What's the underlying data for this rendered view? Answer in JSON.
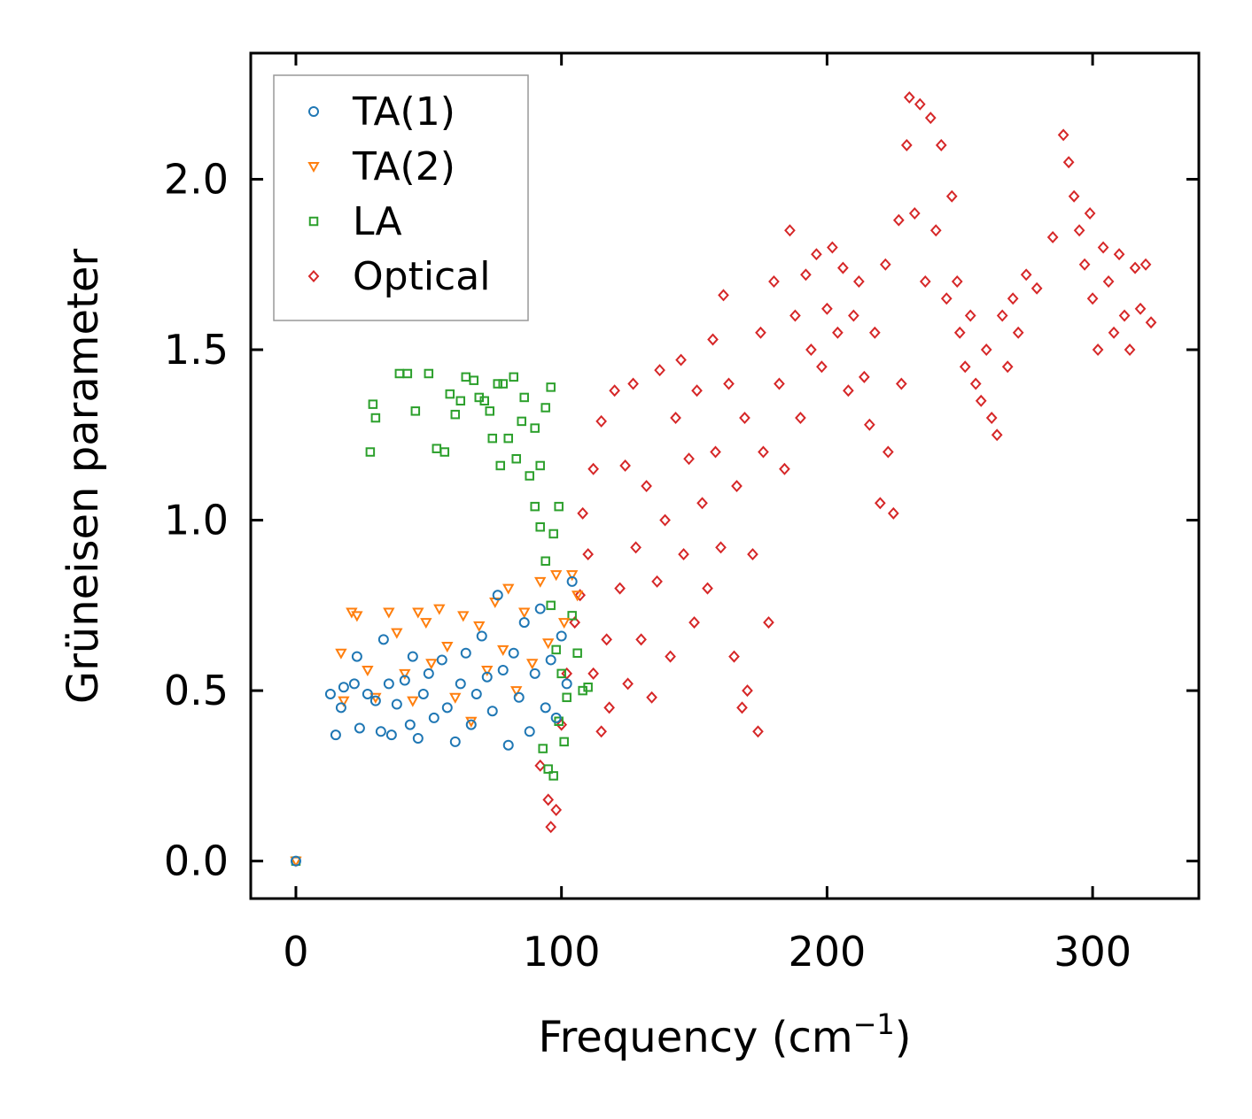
{
  "chart_data": {
    "type": "scatter",
    "title": "",
    "xlabel": "Frequency (cm",
    "xlabel_sup": "−1",
    "xlabel_close": ")",
    "ylabel": "Grüneisen parameter",
    "xlim": [
      -17,
      340
    ],
    "ylim": [
      -0.11,
      2.37
    ],
    "xticks": [
      0,
      100,
      200,
      300
    ],
    "xtick_labels": [
      "0",
      "100",
      "200",
      "300"
    ],
    "yticks": [
      0.0,
      0.5,
      1.0,
      1.5,
      2.0
    ],
    "ytick_labels": [
      "0.0",
      "0.5",
      "1.0",
      "1.5",
      "2.0"
    ],
    "grid": false,
    "legend_position": "top-left",
    "series": [
      {
        "name": "TA(1)",
        "color": "#1f77b4",
        "marker": "circle",
        "points": [
          [
            0,
            0
          ],
          [
            13,
            0.49
          ],
          [
            15,
            0.37
          ],
          [
            17,
            0.45
          ],
          [
            18,
            0.51
          ],
          [
            22,
            0.52
          ],
          [
            23,
            0.6
          ],
          [
            24,
            0.39
          ],
          [
            27,
            0.49
          ],
          [
            30,
            0.47
          ],
          [
            32,
            0.38
          ],
          [
            33,
            0.65
          ],
          [
            35,
            0.52
          ],
          [
            36,
            0.37
          ],
          [
            38,
            0.46
          ],
          [
            41,
            0.53
          ],
          [
            43,
            0.4
          ],
          [
            44,
            0.6
          ],
          [
            46,
            0.36
          ],
          [
            48,
            0.49
          ],
          [
            50,
            0.55
          ],
          [
            52,
            0.42
          ],
          [
            55,
            0.59
          ],
          [
            57,
            0.45
          ],
          [
            60,
            0.35
          ],
          [
            62,
            0.52
          ],
          [
            64,
            0.61
          ],
          [
            66,
            0.4
          ],
          [
            68,
            0.49
          ],
          [
            70,
            0.66
          ],
          [
            72,
            0.54
          ],
          [
            74,
            0.44
          ],
          [
            76,
            0.78
          ],
          [
            78,
            0.56
          ],
          [
            80,
            0.34
          ],
          [
            82,
            0.61
          ],
          [
            84,
            0.48
          ],
          [
            86,
            0.7
          ],
          [
            88,
            0.38
          ],
          [
            90,
            0.55
          ],
          [
            92,
            0.74
          ],
          [
            94,
            0.45
          ],
          [
            96,
            0.59
          ],
          [
            98,
            0.42
          ],
          [
            100,
            0.66
          ],
          [
            102,
            0.52
          ],
          [
            104,
            0.82
          ]
        ]
      },
      {
        "name": "TA(2)",
        "color": "#ff7f0e",
        "marker": "triangle-down",
        "points": [
          [
            0,
            0
          ],
          [
            17,
            0.61
          ],
          [
            18,
            0.47
          ],
          [
            21,
            0.73
          ],
          [
            23,
            0.72
          ],
          [
            27,
            0.56
          ],
          [
            30,
            0.48
          ],
          [
            35,
            0.73
          ],
          [
            38,
            0.67
          ],
          [
            41,
            0.55
          ],
          [
            44,
            0.47
          ],
          [
            46,
            0.73
          ],
          [
            49,
            0.7
          ],
          [
            51,
            0.58
          ],
          [
            54,
            0.74
          ],
          [
            57,
            0.63
          ],
          [
            60,
            0.48
          ],
          [
            63,
            0.72
          ],
          [
            66,
            0.41
          ],
          [
            69,
            0.69
          ],
          [
            72,
            0.56
          ],
          [
            75,
            0.76
          ],
          [
            78,
            0.62
          ],
          [
            80,
            0.8
          ],
          [
            83,
            0.5
          ],
          [
            86,
            0.73
          ],
          [
            89,
            0.58
          ],
          [
            92,
            0.82
          ],
          [
            95,
            0.64
          ],
          [
            98,
            0.84
          ],
          [
            101,
            0.7
          ],
          [
            104,
            0.84
          ],
          [
            106,
            0.78
          ]
        ]
      },
      {
        "name": "LA",
        "color": "#2ca02c",
        "marker": "square",
        "points": [
          [
            0,
            0
          ],
          [
            28,
            1.2
          ],
          [
            29,
            1.34
          ],
          [
            30,
            1.3
          ],
          [
            39,
            1.43
          ],
          [
            42,
            1.43
          ],
          [
            45,
            1.32
          ],
          [
            50,
            1.43
          ],
          [
            53,
            1.21
          ],
          [
            56,
            1.2
          ],
          [
            58,
            1.37
          ],
          [
            60,
            1.31
          ],
          [
            62,
            1.35
          ],
          [
            64,
            1.42
          ],
          [
            67,
            1.41
          ],
          [
            69,
            1.36
          ],
          [
            71,
            1.35
          ],
          [
            73,
            1.32
          ],
          [
            74,
            1.24
          ],
          [
            76,
            1.4
          ],
          [
            77,
            1.16
          ],
          [
            78,
            1.4
          ],
          [
            80,
            1.24
          ],
          [
            82,
            1.42
          ],
          [
            83,
            1.18
          ],
          [
            85,
            1.29
          ],
          [
            86,
            1.36
          ],
          [
            88,
            1.13
          ],
          [
            90,
            1.27
          ],
          [
            92,
            1.16
          ],
          [
            94,
            1.33
          ],
          [
            96,
            1.39
          ],
          [
            97,
            0.96
          ],
          [
            99,
            1.04
          ],
          [
            90,
            1.04
          ],
          [
            92,
            0.98
          ],
          [
            94,
            0.88
          ],
          [
            96,
            0.75
          ],
          [
            98,
            0.62
          ],
          [
            100,
            0.55
          ],
          [
            102,
            0.48
          ],
          [
            104,
            0.72
          ],
          [
            106,
            0.61
          ],
          [
            108,
            0.5
          ],
          [
            110,
            0.51
          ],
          [
            95,
            0.27
          ],
          [
            97,
            0.25
          ],
          [
            93,
            0.33
          ],
          [
            99,
            0.41
          ],
          [
            101,
            0.35
          ]
        ]
      },
      {
        "name": "Optical",
        "color": "#d62728",
        "marker": "diamond",
        "points": [
          [
            92,
            0.28
          ],
          [
            95,
            0.18
          ],
          [
            96,
            0.1
          ],
          [
            98,
            0.15
          ],
          [
            100,
            0.4
          ],
          [
            102,
            0.55
          ],
          [
            105,
            0.7
          ],
          [
            107,
            0.78
          ],
          [
            108,
            1.02
          ],
          [
            110,
            0.9
          ],
          [
            112,
            1.15
          ],
          [
            112,
            0.55
          ],
          [
            115,
            0.38
          ],
          [
            115,
            1.29
          ],
          [
            117,
            0.65
          ],
          [
            118,
            0.45
          ],
          [
            120,
            1.38
          ],
          [
            122,
            0.8
          ],
          [
            124,
            1.16
          ],
          [
            125,
            0.52
          ],
          [
            127,
            1.4
          ],
          [
            128,
            0.92
          ],
          [
            130,
            0.65
          ],
          [
            132,
            1.1
          ],
          [
            134,
            0.48
          ],
          [
            136,
            0.82
          ],
          [
            137,
            1.44
          ],
          [
            139,
            1.0
          ],
          [
            141,
            0.6
          ],
          [
            143,
            1.3
          ],
          [
            145,
            1.47
          ],
          [
            146,
            0.9
          ],
          [
            148,
            1.18
          ],
          [
            150,
            0.7
          ],
          [
            151,
            1.38
          ],
          [
            153,
            1.05
          ],
          [
            155,
            0.8
          ],
          [
            157,
            1.53
          ],
          [
            158,
            1.2
          ],
          [
            160,
            0.92
          ],
          [
            161,
            1.66
          ],
          [
            163,
            1.4
          ],
          [
            165,
            0.6
          ],
          [
            166,
            1.1
          ],
          [
            168,
            0.45
          ],
          [
            169,
            1.3
          ],
          [
            170,
            0.5
          ],
          [
            172,
            0.9
          ],
          [
            174,
            0.38
          ],
          [
            175,
            1.55
          ],
          [
            176,
            1.2
          ],
          [
            178,
            0.7
          ],
          [
            180,
            1.7
          ],
          [
            182,
            1.4
          ],
          [
            184,
            1.15
          ],
          [
            186,
            1.85
          ],
          [
            188,
            1.6
          ],
          [
            190,
            1.3
          ],
          [
            192,
            1.72
          ],
          [
            194,
            1.5
          ],
          [
            196,
            1.78
          ],
          [
            198,
            1.45
          ],
          [
            200,
            1.62
          ],
          [
            202,
            1.8
          ],
          [
            204,
            1.55
          ],
          [
            206,
            1.74
          ],
          [
            208,
            1.38
          ],
          [
            210,
            1.6
          ],
          [
            212,
            1.7
          ],
          [
            214,
            1.42
          ],
          [
            216,
            1.28
          ],
          [
            218,
            1.55
          ],
          [
            220,
            1.05
          ],
          [
            222,
            1.75
          ],
          [
            223,
            1.2
          ],
          [
            225,
            1.02
          ],
          [
            227,
            1.88
          ],
          [
            228,
            1.4
          ],
          [
            230,
            2.1
          ],
          [
            231,
            2.24
          ],
          [
            233,
            1.9
          ],
          [
            235,
            2.22
          ],
          [
            237,
            1.7
          ],
          [
            239,
            2.18
          ],
          [
            241,
            1.85
          ],
          [
            243,
            2.1
          ],
          [
            245,
            1.65
          ],
          [
            247,
            1.95
          ],
          [
            249,
            1.7
          ],
          [
            250,
            1.55
          ],
          [
            252,
            1.45
          ],
          [
            254,
            1.6
          ],
          [
            256,
            1.4
          ],
          [
            258,
            1.35
          ],
          [
            260,
            1.5
          ],
          [
            262,
            1.3
          ],
          [
            264,
            1.25
          ],
          [
            266,
            1.6
          ],
          [
            268,
            1.45
          ],
          [
            270,
            1.65
          ],
          [
            272,
            1.55
          ],
          [
            275,
            1.72
          ],
          [
            279,
            1.68
          ],
          [
            285,
            1.83
          ],
          [
            289,
            2.13
          ],
          [
            291,
            2.05
          ],
          [
            293,
            1.95
          ],
          [
            295,
            1.85
          ],
          [
            297,
            1.75
          ],
          [
            299,
            1.9
          ],
          [
            300,
            1.65
          ],
          [
            302,
            1.5
          ],
          [
            304,
            1.8
          ],
          [
            306,
            1.7
          ],
          [
            308,
            1.55
          ],
          [
            310,
            1.78
          ],
          [
            312,
            1.6
          ],
          [
            314,
            1.5
          ],
          [
            316,
            1.74
          ],
          [
            318,
            1.62
          ],
          [
            320,
            1.75
          ],
          [
            322,
            1.58
          ]
        ]
      }
    ]
  }
}
